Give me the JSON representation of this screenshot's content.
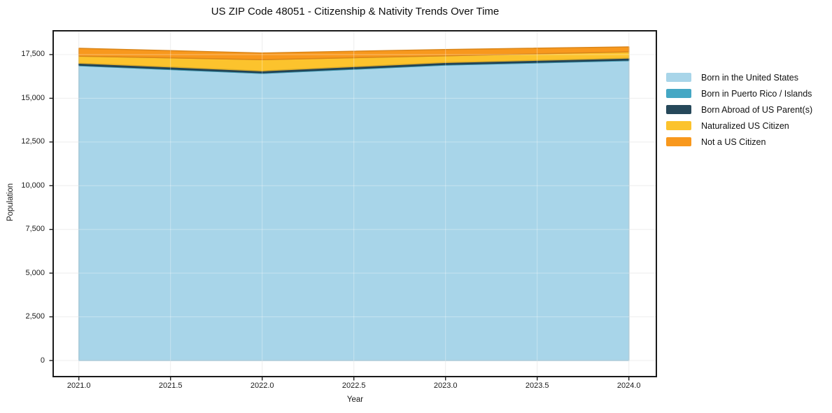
{
  "chart_data": {
    "type": "area",
    "stacked": true,
    "title": "US ZIP Code 48051 - Citizenship & Nativity Trends Over Time",
    "xlabel": "Year",
    "ylabel": "Population",
    "x": [
      2021,
      2022,
      2023,
      2024
    ],
    "series": [
      {
        "name": "Born in the United States",
        "color": "#a8d5e9",
        "values": [
          16860,
          16420,
          16900,
          17150
        ]
      },
      {
        "name": "Born in Puerto Rico / Islands",
        "color": "#44a7c4",
        "values": [
          40,
          40,
          40,
          40
        ]
      },
      {
        "name": "Born Abroad of US Parent(s)",
        "color": "#26485a",
        "values": [
          110,
          110,
          110,
          110
        ]
      },
      {
        "name": "Naturalized US Citizen",
        "color": "#fcc32d",
        "values": [
          400,
          640,
          380,
          360
        ]
      },
      {
        "name": "Not a US Citizen",
        "color": "#f8981d",
        "values": [
          450,
          380,
          360,
          280
        ]
      }
    ],
    "x_ticks": [
      {
        "value": 2021.0,
        "label": "2021.0"
      },
      {
        "value": 2021.5,
        "label": "2021.5"
      },
      {
        "value": 2022.0,
        "label": "2022.0"
      },
      {
        "value": 2022.5,
        "label": "2022.5"
      },
      {
        "value": 2023.0,
        "label": "2023.0"
      },
      {
        "value": 2023.5,
        "label": "2023.5"
      },
      {
        "value": 2024.0,
        "label": "2024.0"
      }
    ],
    "y_ticks": [
      {
        "value": 0,
        "label": "0"
      },
      {
        "value": 2500,
        "label": "2,500"
      },
      {
        "value": 5000,
        "label": "5,000"
      },
      {
        "value": 7500,
        "label": "7,500"
      },
      {
        "value": 10000,
        "label": "10,000"
      },
      {
        "value": 12500,
        "label": "12,500"
      },
      {
        "value": 15000,
        "label": "15,000"
      },
      {
        "value": 17500,
        "label": "17,500"
      }
    ],
    "xlim": [
      2020.86,
      2024.15
    ],
    "ylim": [
      -920,
      18860
    ],
    "grid": true,
    "grid_color": "#e7e7e7",
    "spine_color": "#1a1a1a",
    "background": "#ffffff",
    "legend_position": "right-outside"
  }
}
